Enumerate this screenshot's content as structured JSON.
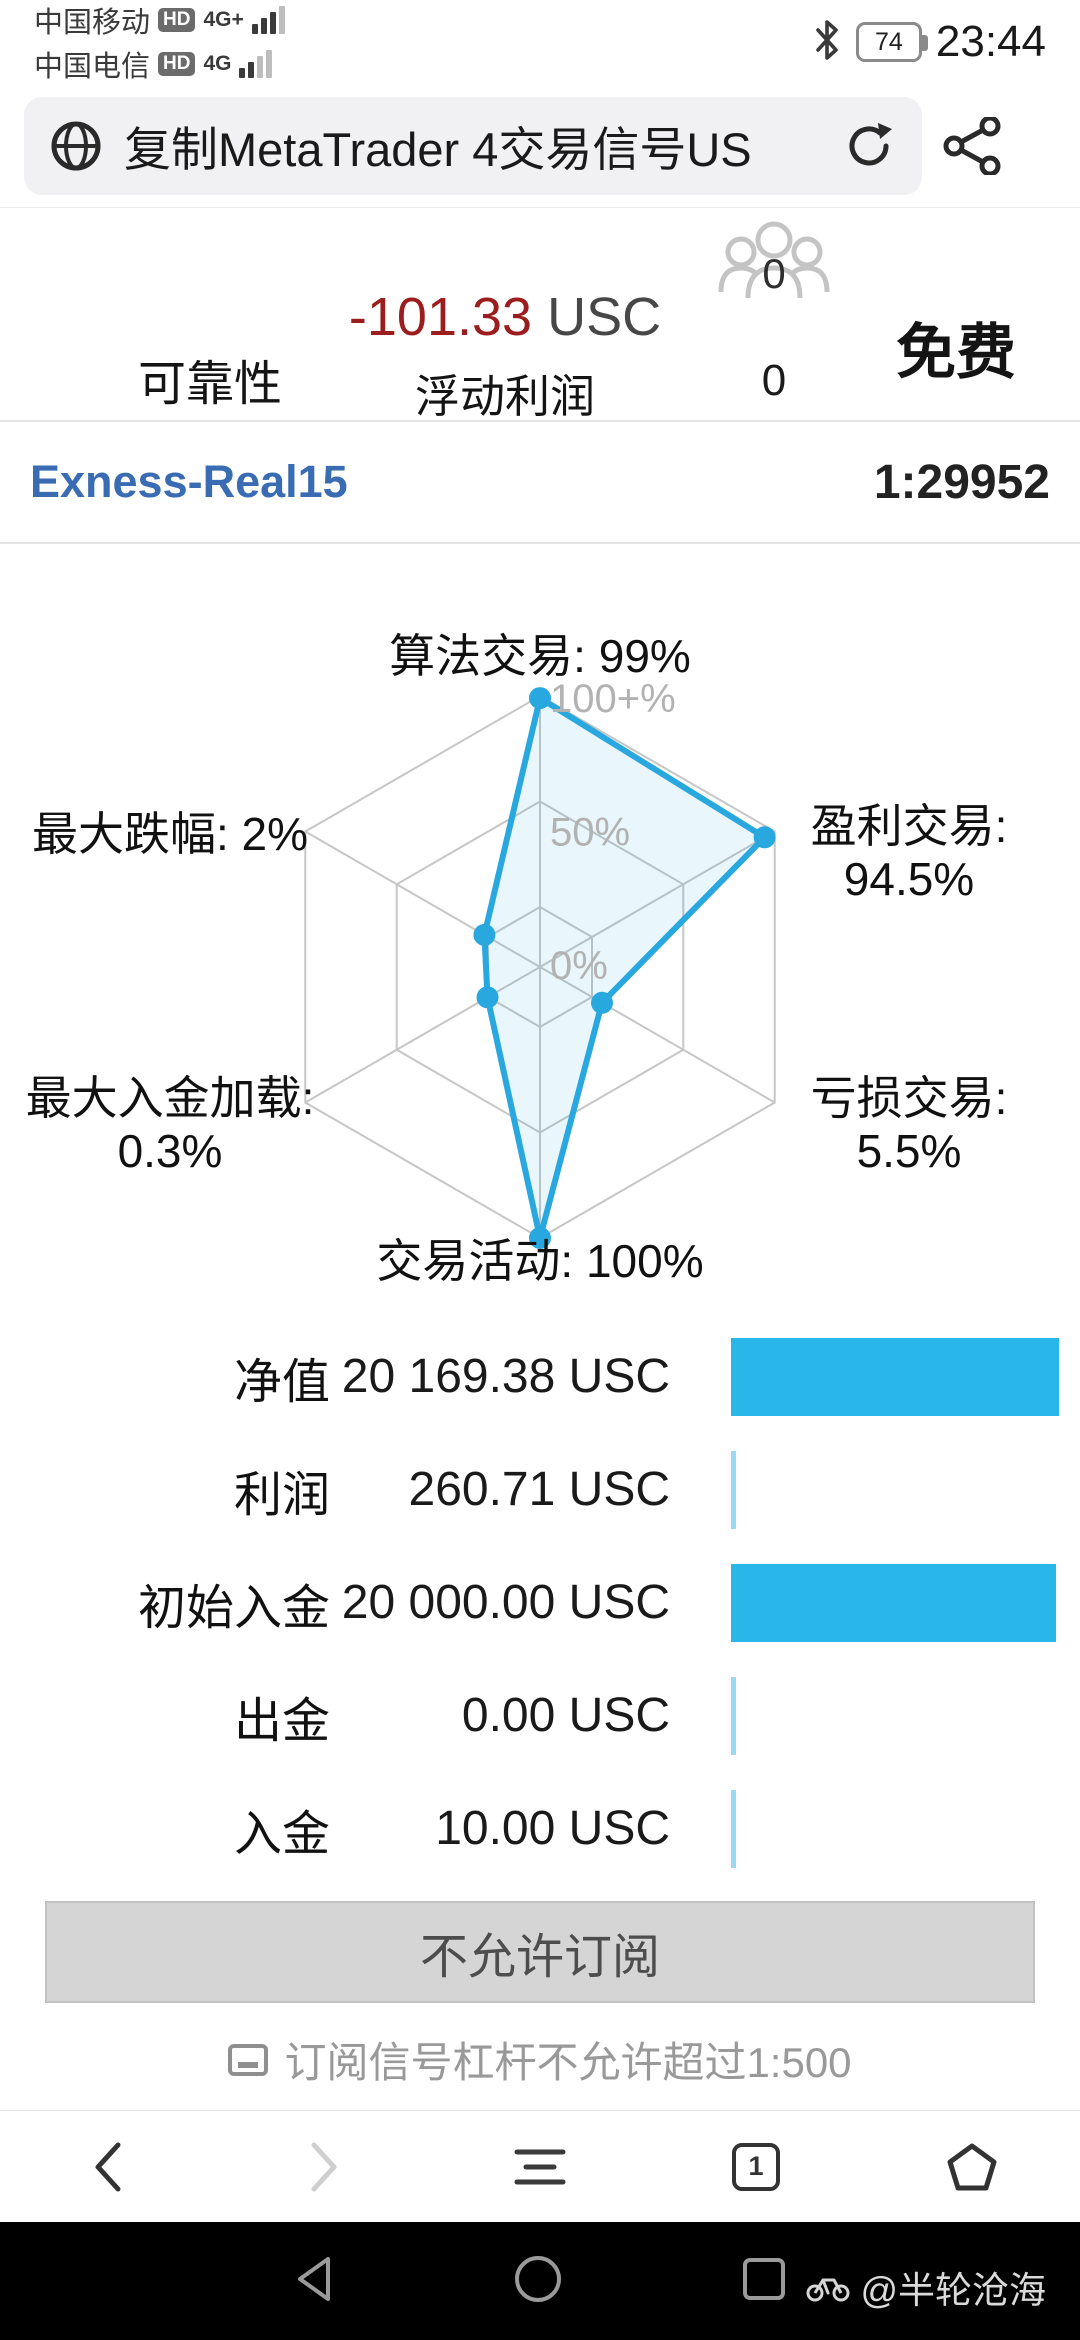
{
  "status_bar": {
    "carriers": [
      {
        "name": "中国移动",
        "badge": "HD",
        "net": "4G+"
      },
      {
        "name": "中国电信",
        "badge": "HD",
        "net": "4G"
      }
    ],
    "battery_level": "74",
    "time": "23:44"
  },
  "address_bar": {
    "url_text": "复制MetaTrader 4交易信号US"
  },
  "signal_header": {
    "reliability_label": "可靠性",
    "floating_profit_value": "-101.33",
    "floating_profit_currency": " USC",
    "floating_profit_label": "浮动利润",
    "subscribers_overlay": "0",
    "subscribers_count": "0",
    "price_label": "免费"
  },
  "account": {
    "server": "Exness-Real15",
    "leverage": "1:29952"
  },
  "chart_data": {
    "type": "radar",
    "max": 100,
    "axes": [
      {
        "name": "算法交易:",
        "pct": "99%",
        "value": 99
      },
      {
        "name": "盈利交易:",
        "pct": "94.5%",
        "value": 94.5
      },
      {
        "name": "亏损交易:",
        "pct": "5.5%",
        "value": 5.5
      },
      {
        "name": "交易活动:",
        "pct": "100%",
        "value": 100
      },
      {
        "name": "最大入金加载:",
        "pct": "0.3%",
        "value": 0.3
      },
      {
        "name": "最大跌幅:",
        "pct": "2%",
        "value": 2
      }
    ],
    "rings": [
      {
        "label": "100+%",
        "value": 100
      },
      {
        "label": "50%",
        "value": 50
      },
      {
        "label": "0%",
        "value": 0
      }
    ],
    "stroke": "#29a8e0",
    "fill": "rgba(41,168,224,0.10)",
    "grid_color": "#c6c6c6"
  },
  "stats": {
    "rows": [
      {
        "label": "净值",
        "value": "20 169.38 USC",
        "bar_pct": 100,
        "bar_color": "#29b7ea"
      },
      {
        "label": "利润",
        "value": "260.71 USC",
        "bar_pct": 1.4,
        "bar_color": "#9bd9f2"
      },
      {
        "label": "初始入金",
        "value": "20 000.00 USC",
        "bar_pct": 99.2,
        "bar_color": "#29b7ea"
      },
      {
        "label": "出金",
        "value": "0.00 USC",
        "bar_pct": 0,
        "bar_color": "#9bd9f2"
      },
      {
        "label": "入金",
        "value": "10.00 USC",
        "bar_pct": 0.3,
        "bar_color": "#9bd9f2"
      }
    ]
  },
  "subscription": {
    "button_label": "不允许订阅",
    "note": "订阅信号杠杆不允许超过1:500"
  },
  "browser_nav": {
    "tab_count": "1"
  },
  "system_nav": {
    "watermark": "@半轮沧海"
  }
}
